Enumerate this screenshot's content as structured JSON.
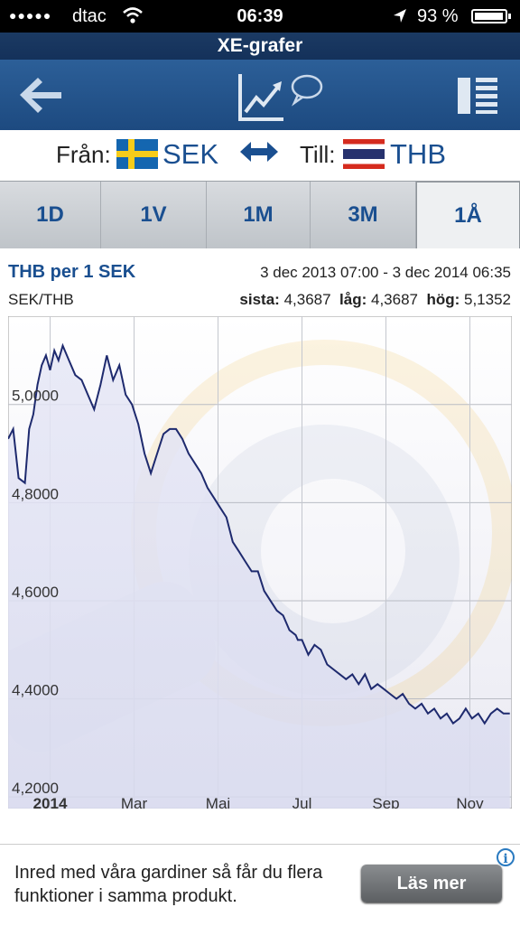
{
  "status_bar": {
    "signal": "●●●●●",
    "carrier": "dtac",
    "time": "06:39",
    "battery_pct": "93 %",
    "battery_level": 0.93
  },
  "app_title": "XE-grafer",
  "toolbar": {
    "back_icon": "back-arrow-icon",
    "chart_icon": "chart-comment-icon",
    "list_icon": "list-icon"
  },
  "currency": {
    "from_label": "Från:",
    "from_code": "SEK",
    "swap_icon": "swap-arrows-icon",
    "to_label": "Till:",
    "to_code": "THB"
  },
  "tabs": [
    {
      "label": "1D",
      "active": false
    },
    {
      "label": "1V",
      "active": false
    },
    {
      "label": "1M",
      "active": false
    },
    {
      "label": "3M",
      "active": false
    },
    {
      "label": "1Å",
      "active": true
    }
  ],
  "chart_header": {
    "title": "THB per 1 SEK",
    "range": "3 dec 2013 07:00 - 3 dec 2014 06:35",
    "pair": "SEK/THB",
    "last_label": "sista:",
    "last_value": "4,3687",
    "low_label": "låg:",
    "low_value": "4,3687",
    "high_label": "hög:",
    "high_value": "5,1352"
  },
  "chart_data": {
    "type": "line",
    "title": "THB per 1 SEK",
    "xlabel": "",
    "ylabel": "",
    "ylim": [
      4.18,
      5.18
    ],
    "yticks": [
      4.2,
      4.4,
      4.6,
      4.8,
      5.0
    ],
    "ytick_labels": [
      "4,2000",
      "4,4000",
      "4,6000",
      "4,8000",
      "5,0000"
    ],
    "xticks": [
      {
        "label": "2014",
        "x": 1.0,
        "bold": true
      },
      {
        "label": "Mar",
        "x": 3.0
      },
      {
        "label": "Maj",
        "x": 5.0
      },
      {
        "label": "Jul",
        "x": 7.0
      },
      {
        "label": "Sep",
        "x": 9.0
      },
      {
        "label": "Nov",
        "x": 11.0
      }
    ],
    "xlim": [
      0.0,
      12.0
    ],
    "grid": true,
    "series": [
      {
        "color": "#1e2a6e",
        "x": [
          0.0,
          0.12,
          0.25,
          0.4,
          0.5,
          0.6,
          0.7,
          0.8,
          0.9,
          1.0,
          1.1,
          1.2,
          1.3,
          1.45,
          1.6,
          1.75,
          1.9,
          2.05,
          2.2,
          2.35,
          2.5,
          2.65,
          2.8,
          2.95,
          3.1,
          3.25,
          3.4,
          3.55,
          3.7,
          3.85,
          4.0,
          4.15,
          4.3,
          4.45,
          4.6,
          4.75,
          4.9,
          5.05,
          5.2,
          5.35,
          5.5,
          5.65,
          5.8,
          5.95,
          6.1,
          6.25,
          6.4,
          6.55,
          6.7,
          6.85,
          6.9,
          7.0,
          7.15,
          7.3,
          7.45,
          7.6,
          7.75,
          7.9,
          8.05,
          8.2,
          8.35,
          8.5,
          8.65,
          8.8,
          8.95,
          9.1,
          9.25,
          9.4,
          9.55,
          9.7,
          9.85,
          10.0,
          10.15,
          10.3,
          10.45,
          10.6,
          10.75,
          10.9,
          11.05,
          11.2,
          11.35,
          11.5,
          11.65,
          11.8,
          11.95
        ],
        "y": [
          4.93,
          4.95,
          4.85,
          4.84,
          4.95,
          4.98,
          5.04,
          5.08,
          5.1,
          5.07,
          5.11,
          5.09,
          5.12,
          5.09,
          5.06,
          5.05,
          5.02,
          4.99,
          5.04,
          5.1,
          5.05,
          5.08,
          5.02,
          5.0,
          4.96,
          4.9,
          4.86,
          4.9,
          4.94,
          4.95,
          4.95,
          4.93,
          4.9,
          4.88,
          4.86,
          4.83,
          4.81,
          4.79,
          4.77,
          4.72,
          4.7,
          4.68,
          4.66,
          4.66,
          4.62,
          4.6,
          4.58,
          4.57,
          4.54,
          4.53,
          4.52,
          4.52,
          4.49,
          4.51,
          4.5,
          4.47,
          4.46,
          4.45,
          4.44,
          4.45,
          4.43,
          4.45,
          4.42,
          4.43,
          4.42,
          4.41,
          4.4,
          4.41,
          4.39,
          4.38,
          4.39,
          4.37,
          4.38,
          4.36,
          4.37,
          4.35,
          4.36,
          4.38,
          4.36,
          4.37,
          4.35,
          4.37,
          4.38,
          4.37,
          4.37
        ]
      }
    ]
  },
  "ad": {
    "text": "Inred med våra gardiner så får du flera funktioner i samma produkt.",
    "button": "Läs mer",
    "info_icon": "info-icon",
    "info_glyph": "i"
  }
}
